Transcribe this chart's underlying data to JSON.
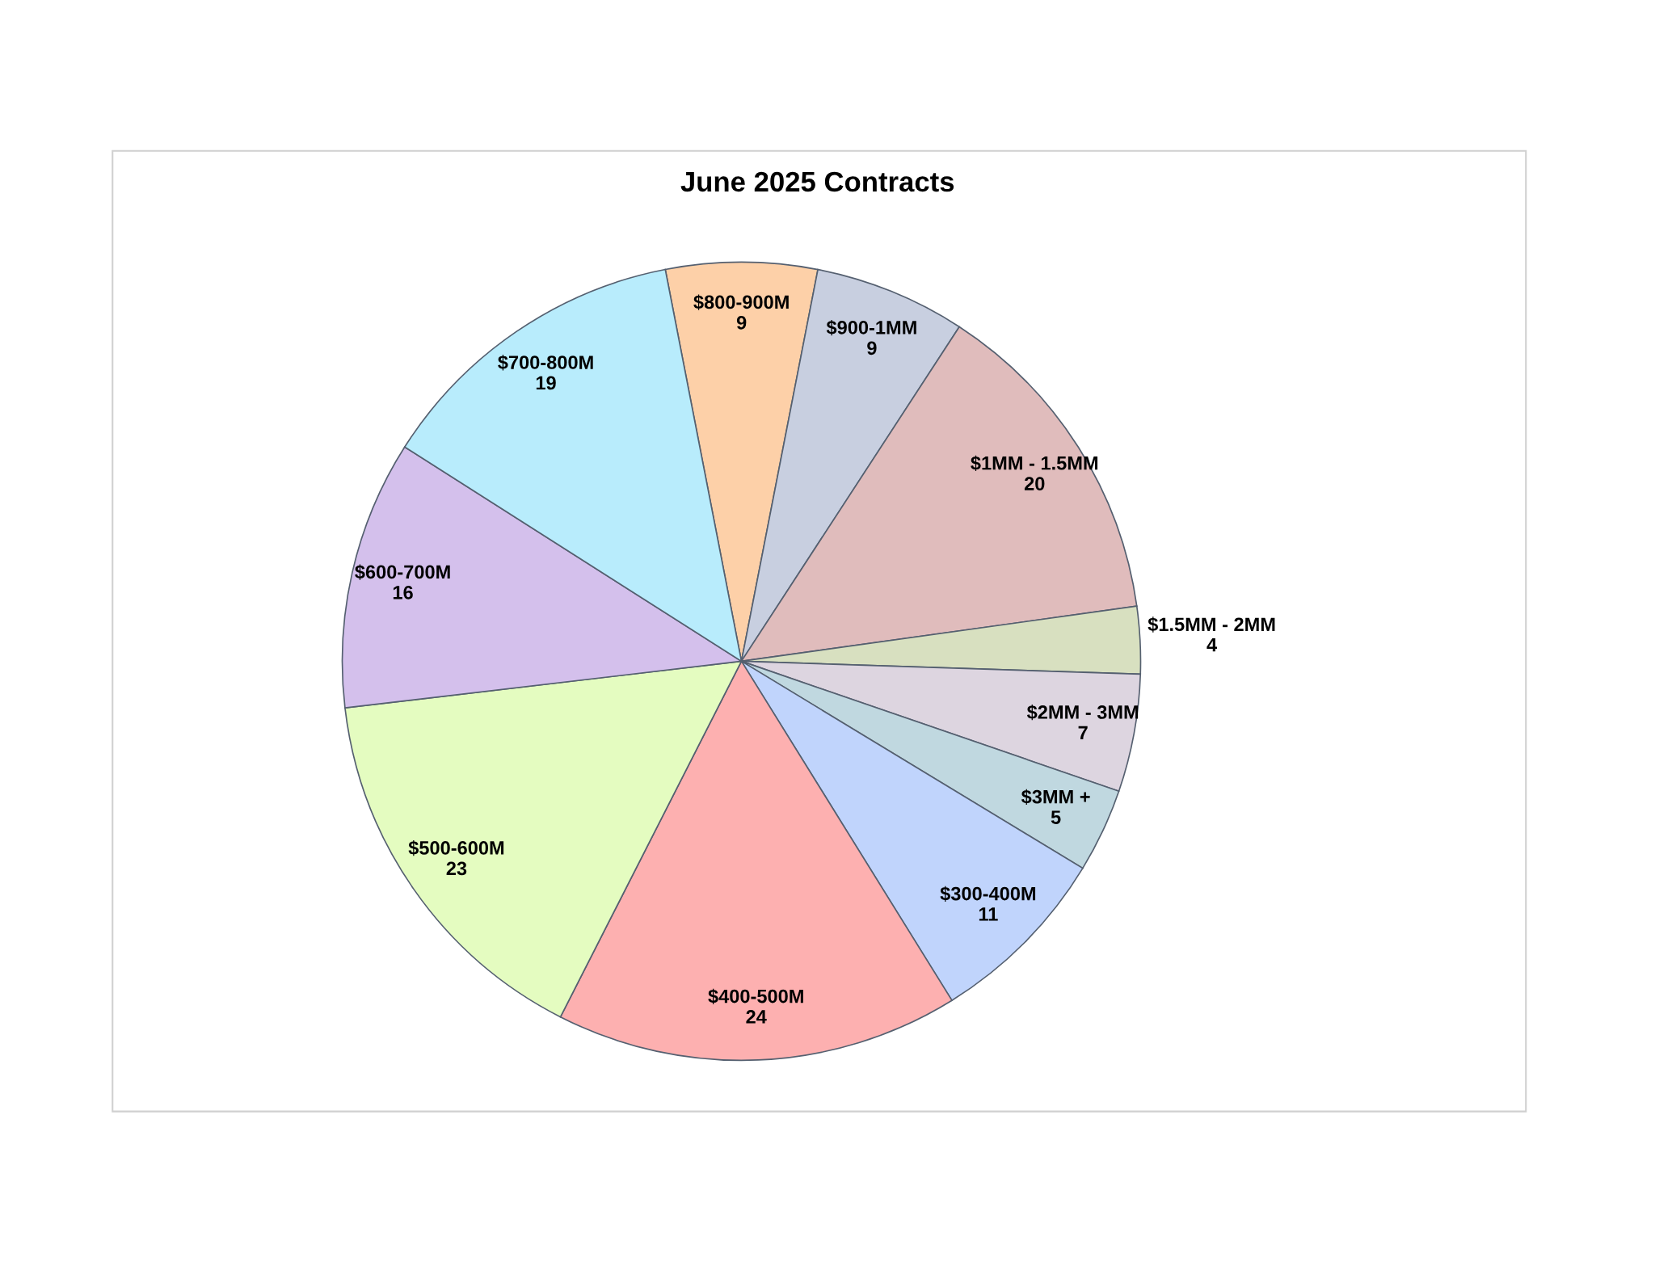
{
  "chart_data": {
    "type": "pie",
    "title": "June 2025 Contracts",
    "categories": [
      "$800-900M",
      "$900-1MM",
      "$1MM - 1.5MM",
      "$1.5MM - 2MM",
      "$2MM - 3MM",
      "$3MM +",
      "$300-400M",
      "$400-500M",
      "$500-600M",
      "$600-700M",
      "$700-800M"
    ],
    "values": [
      9,
      9,
      20,
      4,
      7,
      5,
      11,
      24,
      23,
      16,
      19
    ],
    "colors": [
      "#fdd0a8",
      "#c8cfe0",
      "#e0bcbc",
      "#d8e0c0",
      "#ddd5e0",
      "#c0d8e0",
      "#c0d4fc",
      "#fdb0b0",
      "#e4fcc0",
      "#d4c0ec",
      "#b8ecfc"
    ],
    "data_labels": true
  }
}
